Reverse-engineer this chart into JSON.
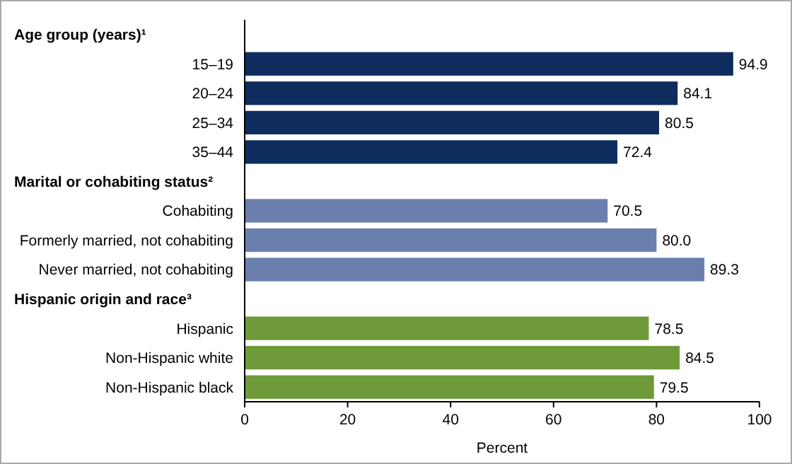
{
  "chart_data": {
    "type": "bar",
    "orientation": "horizontal",
    "xlabel": "Percent",
    "categories": [
      null,
      "15–19",
      "20–24",
      "25–34",
      "35–44",
      null,
      "Cohabiting",
      "Formerly married, not cohabiting",
      "Never married, not cohabiting",
      null,
      "Hispanic",
      "Non-Hispanic white",
      "Non-Hispanic black"
    ],
    "annotations": [
      "Age group (years)¹",
      "Marital or cohabiting status²",
      "Hispanic origin and race³"
    ],
    "values": [
      null,
      94.9,
      84.1,
      80.5,
      72.4,
      null,
      70.5,
      80.0,
      89.3,
      null,
      78.5,
      84.5,
      79.5
    ],
    "value_labels": [
      null,
      "94.9",
      "84.1",
      "80.5",
      "72.4",
      null,
      "70.5",
      "80.0",
      "89.3",
      null,
      "78.5",
      "84.5",
      "79.5"
    ],
    "colors": [
      null,
      "#0e2d5e",
      "#0e2d5e",
      "#0e2d5e",
      "#0e2d5e",
      null,
      "#6b7fad",
      "#6b7fad",
      "#6b7fad",
      null,
      "#6e9a3a",
      "#6e9a3a",
      "#6e9a3a"
    ],
    "xlim": [
      0,
      100
    ],
    "xticks": [
      0,
      20,
      40,
      60,
      80,
      100
    ],
    "grid": false
  }
}
